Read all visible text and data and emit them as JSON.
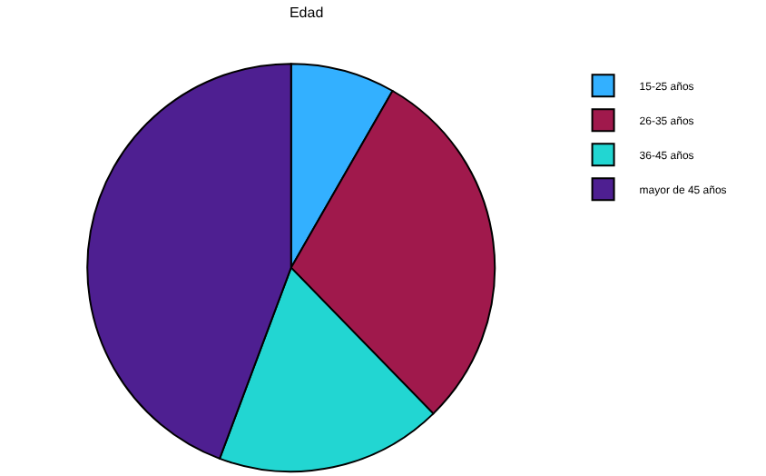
{
  "chart_data": {
    "type": "pie",
    "title": "Edad",
    "categories": [
      "15-25 años",
      "26-35 años",
      "36-45 años",
      "mayor de 45 años"
    ],
    "values": [
      8.3,
      29.4,
      18,
      44.3
    ],
    "colors": [
      "#33b0ff",
      "#a0194c",
      "#22d6d2",
      "#4e1f91"
    ],
    "legend": "top right"
  }
}
